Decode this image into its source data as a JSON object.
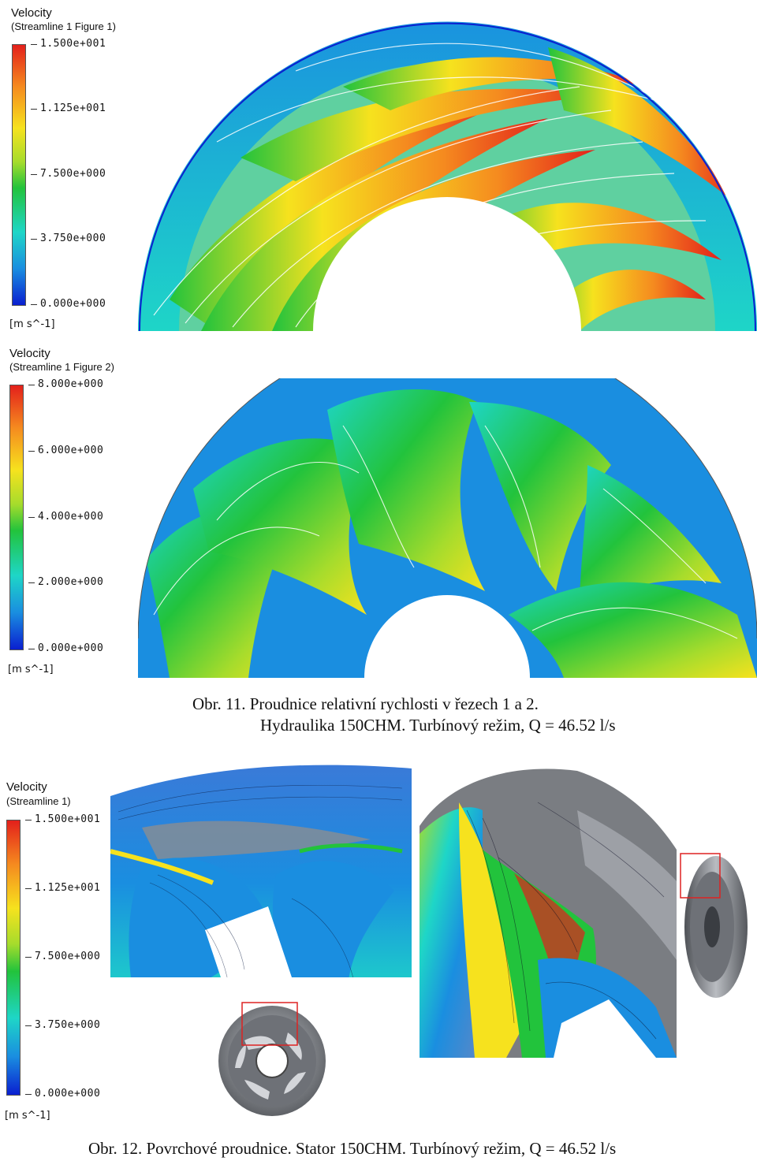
{
  "figure1": {
    "legend": {
      "title": "Velocity",
      "subtitle": "(Streamline 1 Figure 1)",
      "ticks": [
        "1.500e+001",
        "1.125e+001",
        "7.500e+000",
        "3.750e+000",
        "0.000e+000"
      ],
      "unit": "[m s^-1]"
    }
  },
  "figure2": {
    "legend": {
      "title": "Velocity",
      "subtitle": "(Streamline 1 Figure 2)",
      "ticks": [
        "8.000e+000",
        "6.000e+000",
        "4.000e+000",
        "2.000e+000",
        "0.000e+000"
      ],
      "unit": "[m s^-1]"
    }
  },
  "caption11": {
    "line1": "Obr. 11. Proudnice relativní rychlosti v řezech 1 a 2.",
    "line2": "Hydraulika 150CHM. Turbínový režim, Q = 46.52 l/s"
  },
  "figure3": {
    "legend": {
      "title": "Velocity",
      "subtitle": "(Streamline 1)",
      "ticks": [
        "1.500e+001",
        "1.125e+001",
        "7.500e+000",
        "3.750e+000",
        "0.000e+000"
      ],
      "unit": "[m s^-1]"
    }
  },
  "caption12": {
    "line1": "Obr. 12. Povrchové proudnice. Stator 150CHM. Turbínový režim, Q = 46.52 l/s"
  },
  "colors": {
    "hot": "#e3201b",
    "warm": "#f58a1f",
    "yellow": "#f6e21e",
    "green": "#22c33c",
    "cyan": "#1ed6c7",
    "blue": "#1a8ee0",
    "deep": "#0a1fd0",
    "metal": "#8a8d92"
  }
}
